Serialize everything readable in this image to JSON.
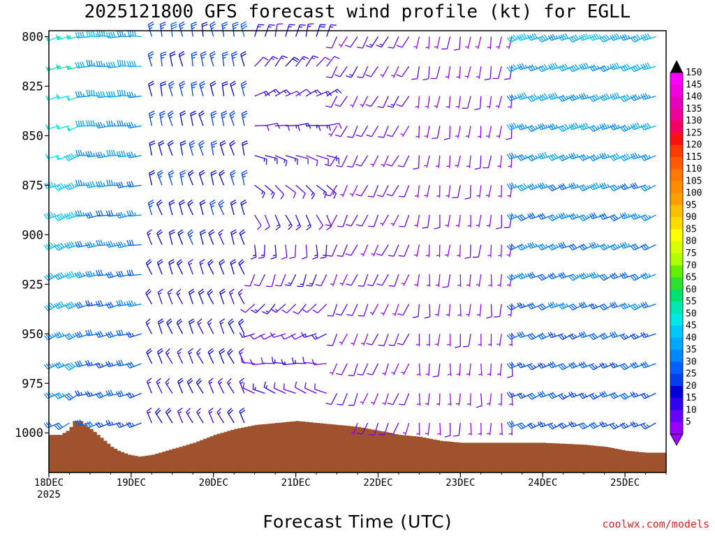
{
  "title": "2025121800 GFS forecast wind profile (kt) for EGLL",
  "xlabel": "Forecast Time (UTC)",
  "credit": "coolwx.com/models",
  "chart_data": {
    "type": "wind-barb-time-height",
    "title": "2025121800 GFS forecast wind profile (kt) for EGLL",
    "xlabel": "Forecast Time (UTC)",
    "units": "kt",
    "x_ticks": [
      {
        "label": "18DEC",
        "sublabel": "2025",
        "hour": 0
      },
      {
        "label": "19DEC",
        "sublabel": "",
        "hour": 24
      },
      {
        "label": "20DEC",
        "sublabel": "",
        "hour": 48
      },
      {
        "label": "21DEC",
        "sublabel": "",
        "hour": 72
      },
      {
        "label": "22DEC",
        "sublabel": "",
        "hour": 96
      },
      {
        "label": "23DEC",
        "sublabel": "",
        "hour": 120
      },
      {
        "label": "24DEC",
        "sublabel": "",
        "hour": 144
      },
      {
        "label": "25DEC",
        "sublabel": "",
        "hour": 168
      }
    ],
    "x_range_hours": [
      0,
      180
    ],
    "y_ticks": [
      "800",
      "825",
      "850",
      "875",
      "900",
      "925",
      "950",
      "975",
      "1000"
    ],
    "y_range_hpa": [
      1020,
      797
    ],
    "levels_hpa": [
      800,
      815,
      830,
      845,
      860,
      875,
      890,
      905,
      920,
      935,
      950,
      965,
      980,
      995,
      1010
    ],
    "colorbar": {
      "labels": [
        "150",
        "145",
        "140",
        "135",
        "130",
        "125",
        "120",
        "115",
        "110",
        "105",
        "100",
        "95",
        "90",
        "85",
        "80",
        "75",
        "70",
        "65",
        "60",
        "55",
        "50",
        "45",
        "40",
        "35",
        "30",
        "25",
        "20",
        "15",
        "10",
        "5"
      ],
      "colors": [
        "#ff00ff",
        "#f200dd",
        "#e600bb",
        "#ee0099",
        "#f50060",
        "#ff1010",
        "#ff3a00",
        "#ff5a00",
        "#ff7800",
        "#ff8c00",
        "#ffa000",
        "#ffbe00",
        "#ffdc00",
        "#ffff00",
        "#d8ff00",
        "#b0ff00",
        "#60f000",
        "#30e030",
        "#00e070",
        "#00e8b0",
        "#00e8e8",
        "#00c8ff",
        "#00a8ff",
        "#0088ff",
        "#0060ff",
        "#0040f0",
        "#0000d8",
        "#3000f0",
        "#6800ff",
        "#9a00ff"
      ]
    },
    "terrain": {
      "color": "#a0522d",
      "surface_pressure_hpa": [
        {
          "hour": 0,
          "p": 1001
        },
        {
          "hour": 3,
          "p": 1001
        },
        {
          "hour": 5,
          "p": 999
        },
        {
          "hour": 6,
          "p": 997
        },
        {
          "hour": 7,
          "p": 994
        },
        {
          "hour": 9,
          "p": 994
        },
        {
          "hour": 10,
          "p": 996
        },
        {
          "hour": 12,
          "p": 998
        },
        {
          "hour": 14,
          "p": 1001
        },
        {
          "hour": 16,
          "p": 1004
        },
        {
          "hour": 18,
          "p": 1007
        },
        {
          "hour": 20,
          "p": 1009
        },
        {
          "hour": 23,
          "p": 1011
        },
        {
          "hour": 26,
          "p": 1012
        },
        {
          "hour": 30,
          "p": 1011
        },
        {
          "hour": 36,
          "p": 1008
        },
        {
          "hour": 42,
          "p": 1005
        },
        {
          "hour": 48,
          "p": 1001
        },
        {
          "hour": 54,
          "p": 998
        },
        {
          "hour": 60,
          "p": 996
        },
        {
          "hour": 66,
          "p": 995
        },
        {
          "hour": 72,
          "p": 994
        },
        {
          "hour": 78,
          "p": 995
        },
        {
          "hour": 84,
          "p": 996
        },
        {
          "hour": 90,
          "p": 997
        },
        {
          "hour": 96,
          "p": 999
        },
        {
          "hour": 102,
          "p": 1001
        },
        {
          "hour": 108,
          "p": 1002
        },
        {
          "hour": 114,
          "p": 1004
        },
        {
          "hour": 120,
          "p": 1005
        },
        {
          "hour": 132,
          "p": 1005
        },
        {
          "hour": 144,
          "p": 1005
        },
        {
          "hour": 156,
          "p": 1006
        },
        {
          "hour": 162,
          "p": 1007
        },
        {
          "hour": 168,
          "p": 1009
        },
        {
          "hour": 174,
          "p": 1010
        },
        {
          "hour": 180,
          "p": 1010
        }
      ]
    },
    "wind_phases": [
      {
        "from_hour": 0,
        "to_hour": 12,
        "dir_upper": 255,
        "dir_lower": 240,
        "spd_upper": 55,
        "spd_lower": 30
      },
      {
        "from_hour": 12,
        "to_hour": 30,
        "dir_upper": 270,
        "dir_lower": 250,
        "spd_upper": 40,
        "spd_lower": 25
      },
      {
        "from_hour": 30,
        "to_hour": 60,
        "dir_upper": 350,
        "dir_lower": 330,
        "spd_upper": 25,
        "spd_lower": 15
      },
      {
        "from_hour": 60,
        "to_hour": 84,
        "dir_upper": 15,
        "dir_lower": 340,
        "spd_upper": 15,
        "spd_lower": 10
      },
      {
        "from_hour": 84,
        "to_hour": 108,
        "dir_upper": 210,
        "dir_lower": 200,
        "spd_upper": 10,
        "spd_lower": 8
      },
      {
        "from_hour": 108,
        "to_hour": 138,
        "dir_upper": 190,
        "dir_lower": 180,
        "spd_upper": 6,
        "spd_lower": 5
      },
      {
        "from_hour": 138,
        "to_hour": 180,
        "dir_upper": 250,
        "dir_lower": 245,
        "spd_upper": 40,
        "spd_lower": 25
      }
    ]
  }
}
